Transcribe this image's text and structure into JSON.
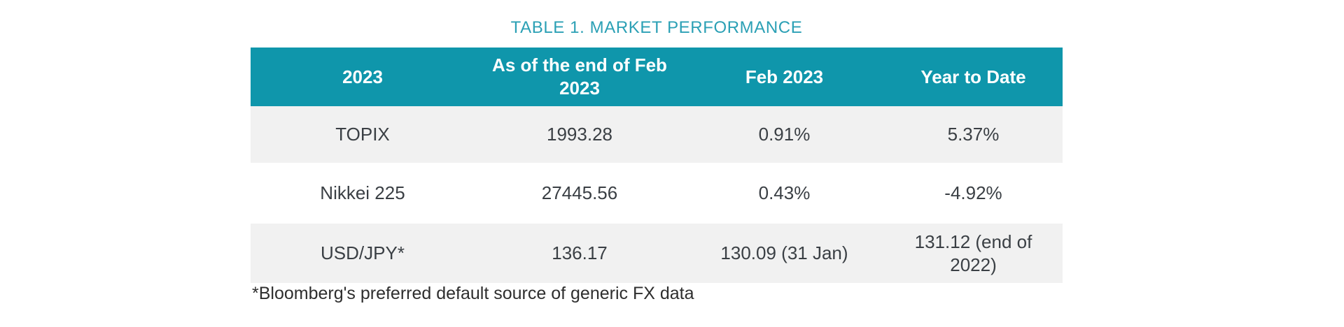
{
  "title": "TABLE 1. MARKET PERFORMANCE",
  "table": {
    "columns": [
      "2023",
      "As of the end of Feb 2023",
      "Feb 2023",
      "Year to Date"
    ],
    "rows": [
      {
        "label": "TOPIX",
        "values": [
          "1993.28",
          "0.91%",
          "5.37%"
        ]
      },
      {
        "label": "Nikkei 225",
        "values": [
          "27445.56",
          "0.43%",
          "-4.92%"
        ]
      },
      {
        "label": "USD/JPY*",
        "values": [
          "136.17",
          "130.09 (31 Jan)",
          "131.12 (end of 2022)"
        ]
      }
    ]
  },
  "footnote": "*Bloomberg's preferred default source of generic FX data",
  "colors": {
    "header_bg": "#0f96ab",
    "title_text": "#2ba0b5",
    "row_alt_bg": "#f1f1f1",
    "body_text": "#3a3f44",
    "header_text": "#ffffff"
  }
}
